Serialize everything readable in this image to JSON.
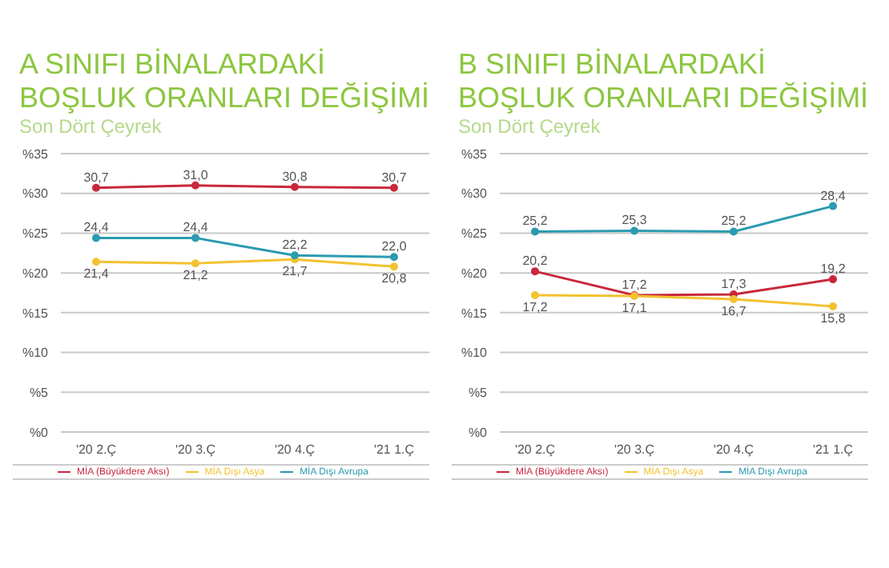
{
  "chart_data": [
    {
      "type": "line",
      "title": "A SINIFI BİNALARDAKİ BOŞLUK ORANLARI DEĞİŞİMİ",
      "subtitle": "Son Dört Çeyrek",
      "categories": [
        "'20 2.Ç",
        "'20 3.Ç",
        "'20 4.Ç",
        "'21 1.Ç"
      ],
      "series": [
        {
          "name": "MİA (Büyükdere Aksı)",
          "color": "#c8283c",
          "values": [
            30.7,
            31.0,
            30.8,
            30.7
          ],
          "value_labels": [
            "30,7",
            "31,0",
            "30,8",
            "30,7"
          ]
        },
        {
          "name": "MİA Dışı Asya",
          "color": "#f2c230",
          "values": [
            21.4,
            21.2,
            21.7,
            20.8
          ],
          "value_labels": [
            "21,4",
            "21,2",
            "21,7",
            "20,8"
          ]
        },
        {
          "name": "MİA Dışı Avrupa",
          "color": "#2a9bb0",
          "values": [
            24.4,
            24.4,
            22.2,
            22.0
          ],
          "value_labels": [
            "24,4",
            "24,4",
            "22,2",
            "22,0"
          ]
        }
      ],
      "ylim": [
        0,
        35
      ],
      "yticks": [
        {
          "value": 0,
          "label": "%0"
        },
        {
          "value": 5,
          "label": "%5"
        },
        {
          "value": 10,
          "label": "%10"
        },
        {
          "value": 15,
          "label": "%15"
        },
        {
          "value": 20,
          "label": "%20"
        },
        {
          "value": 25,
          "label": "%25"
        },
        {
          "value": 30,
          "label": "%30"
        },
        {
          "value": 35,
          "label": "%35"
        }
      ],
      "grid": "y",
      "legend": "bottom",
      "marker": "circle",
      "line_style": "solid"
    },
    {
      "type": "line",
      "title": "B SINIFI BİNALARDAKİ BOŞLUK ORANLARI DEĞİŞİMİ",
      "subtitle": "Son Dört Çeyrek",
      "categories": [
        "'20 2.Ç",
        "'20 3.Ç",
        "'20 4.Ç",
        "'21 1.Ç"
      ],
      "series": [
        {
          "name": "MİA (Büyükdere Aksı)",
          "color": "#c8283c",
          "values": [
            20.2,
            17.2,
            17.3,
            19.2
          ],
          "value_labels": [
            "20,2",
            "17,2",
            "17,3",
            "19,2"
          ]
        },
        {
          "name": "MİA Dışı Asya",
          "color": "#f2c230",
          "values": [
            17.2,
            17.1,
            16.7,
            15.8
          ],
          "value_labels": [
            "17,2",
            "17,1",
            "16,7",
            "15,8"
          ]
        },
        {
          "name": "MİA Dışı Avrupa",
          "color": "#2a9bb0",
          "values": [
            25.2,
            25.3,
            25.2,
            28.4
          ],
          "value_labels": [
            "25,2",
            "25,3",
            "25,2",
            "28,4"
          ]
        }
      ],
      "ylim": [
        0,
        35
      ],
      "yticks": [
        {
          "value": 0,
          "label": "%0"
        },
        {
          "value": 5,
          "label": "%5"
        },
        {
          "value": 10,
          "label": "%10"
        },
        {
          "value": 15,
          "label": "%15"
        },
        {
          "value": 20,
          "label": "%20"
        },
        {
          "value": 25,
          "label": "%25"
        },
        {
          "value": 30,
          "label": "%30"
        },
        {
          "value": 35,
          "label": "%35"
        }
      ],
      "grid": "y",
      "legend": "bottom",
      "marker": "circle",
      "line_style": "solid"
    }
  ]
}
